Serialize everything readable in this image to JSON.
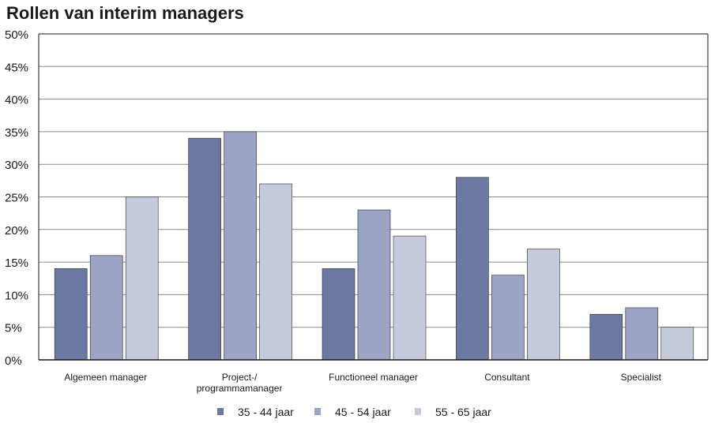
{
  "chart_data": {
    "type": "bar",
    "title": "Rollen van interim managers",
    "xlabel": "",
    "ylabel": "",
    "ylim": [
      0,
      50
    ],
    "yticks": [
      "0%",
      "5%",
      "10%",
      "15%",
      "20%",
      "25%",
      "30%",
      "35%",
      "40%",
      "45%",
      "50%"
    ],
    "grid": true,
    "legend_position": "bottom",
    "categories": [
      [
        "Algemeen manager"
      ],
      [
        "Project-/",
        "programmamanager"
      ],
      [
        "Functioneel manager"
      ],
      [
        "Consultant"
      ],
      [
        "Specialist"
      ]
    ],
    "series": [
      {
        "name": "35 - 44 jaar",
        "color": "#6b78a2",
        "values": [
          14,
          34,
          14,
          28,
          7
        ]
      },
      {
        "name": "45 - 54 jaar",
        "color": "#9ba4c4",
        "values": [
          16,
          35,
          23,
          13,
          8
        ]
      },
      {
        "name": "55 - 65 jaar",
        "color": "#c6cadd",
        "values": [
          25,
          27,
          19,
          17,
          5
        ]
      }
    ]
  }
}
